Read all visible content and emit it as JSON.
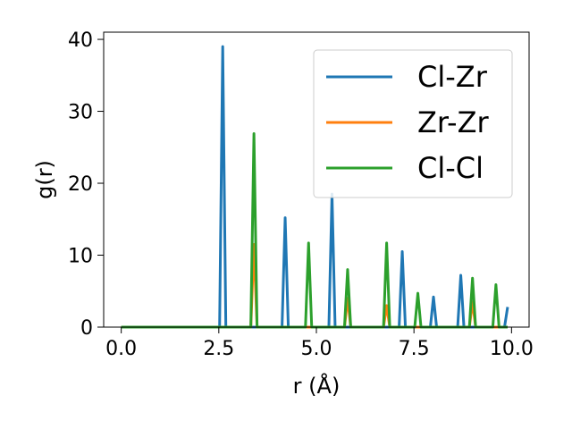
{
  "chart_data": {
    "type": "line",
    "title": "",
    "xlabel": "r (Å)",
    "ylabel": "g(r)",
    "xlim": [
      -0.45,
      10.45
    ],
    "ylim": [
      0,
      41
    ],
    "xticks": [
      0.0,
      2.5,
      5.0,
      7.5,
      10.0
    ],
    "xtick_labels": [
      "0.0",
      "2.5",
      "5.0",
      "7.5",
      "10.0"
    ],
    "yticks": [
      0,
      10,
      20,
      30,
      40
    ],
    "ytick_labels": [
      "0",
      "10",
      "20",
      "30",
      "40"
    ],
    "grid": false,
    "legend_position": "top-right",
    "series": [
      {
        "name": "Cl-Zr",
        "color": "#1f77b4",
        "x_start": 0.0,
        "x_end": 9.9,
        "peaks": [
          [
            2.6,
            39.0
          ],
          [
            4.2,
            15.2
          ],
          [
            5.4,
            18.5
          ],
          [
            7.2,
            10.5
          ],
          [
            8.0,
            4.2
          ],
          [
            8.7,
            7.2
          ],
          [
            9.9,
            2.8
          ]
        ]
      },
      {
        "name": "Zr-Zr",
        "color": "#ff7f0e",
        "x_start": 0.0,
        "x_end": 9.9,
        "peaks": [
          [
            3.4,
            11.5
          ],
          [
            5.8,
            4.0
          ],
          [
            6.8,
            3.0
          ],
          [
            9.0,
            3.5
          ]
        ]
      },
      {
        "name": "Cl-Cl",
        "color": "#2ca02c",
        "x_start": 0.0,
        "x_end": 9.9,
        "peaks": [
          [
            3.4,
            26.9
          ],
          [
            4.8,
            11.7
          ],
          [
            5.8,
            8.0
          ],
          [
            6.8,
            11.7
          ],
          [
            7.6,
            4.7
          ],
          [
            9.0,
            6.8
          ],
          [
            9.6,
            5.9
          ]
        ]
      }
    ]
  }
}
